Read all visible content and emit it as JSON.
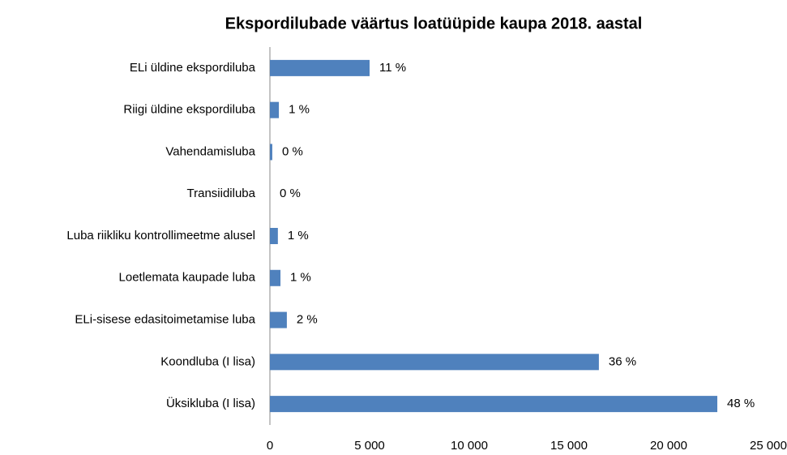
{
  "chart_data": {
    "type": "hbar",
    "title": "Ekspordilubade väärtus loatüüpide kaupa 2018. aastal",
    "categories": [
      "ELi üldine ekspordiluba",
      "Riigi üldine ekspordiluba",
      "Vahendamisluba",
      "Transiidiluba",
      "Luba riikliku kontrollimeetme alusel",
      "Loetlemata kaupade luba",
      "ELi-sisese edasitoimetamise luba",
      "Koondluba (I lisa)",
      "Üksikluba (I lisa)"
    ],
    "values": [
      5000,
      450,
      120,
      0,
      400,
      530,
      850,
      16500,
      22440
    ],
    "value_labels": [
      "11 %",
      "1 %",
      "0 %",
      "0 %",
      "1 %",
      "1 %",
      "2 %",
      "36 %",
      "48 %"
    ],
    "color": "#4f81bd",
    "xlim": [
      0,
      25000
    ],
    "xticks": [
      0,
      {
        "value": 5000,
        "label": "5 000"
      },
      {
        "value": 10000,
        "label": "10 000"
      },
      {
        "value": 15000,
        "label": "15 000"
      },
      {
        "value": 20000,
        "label": "20 000"
      },
      {
        "value": 25000,
        "label": "25 000"
      }
    ],
    "grid": false
  }
}
